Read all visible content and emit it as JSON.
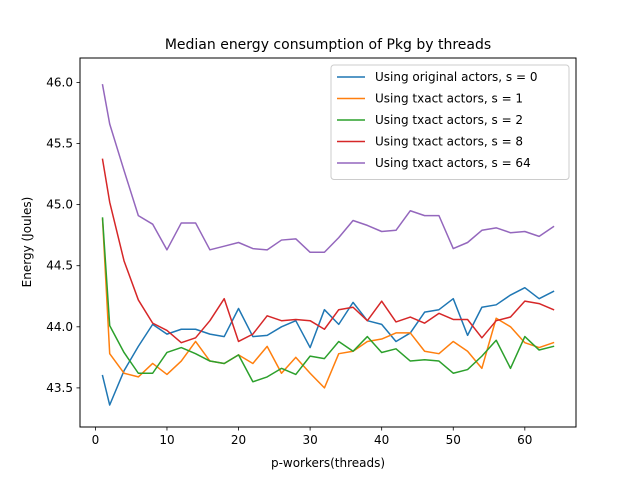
{
  "chart_data": {
    "type": "line",
    "title": "Median energy consumption of Pkg by threads",
    "xlabel": "p-workers(threads)",
    "ylabel": "Energy (Joules)",
    "xlim": [
      -2.15,
      67.15
    ],
    "ylim": [
      43.18,
      46.2
    ],
    "xticks": [
      0,
      10,
      20,
      30,
      40,
      50,
      60
    ],
    "yticks": [
      43.5,
      44.0,
      44.5,
      45.0,
      45.5,
      46.0
    ],
    "ytick_labels": [
      "43.5",
      "44.0",
      "44.5",
      "45.0",
      "45.5",
      "46.0"
    ],
    "grid": false,
    "legend_position": "top-right",
    "x": [
      1,
      2,
      4,
      6,
      8,
      10,
      12,
      14,
      16,
      18,
      20,
      22,
      24,
      26,
      28,
      30,
      32,
      34,
      36,
      38,
      40,
      42,
      44,
      46,
      48,
      50,
      52,
      54,
      56,
      58,
      60,
      62,
      64
    ],
    "series": [
      {
        "name": "Using original actors, s = 0",
        "color": "#1f77b4",
        "values": [
          43.6,
          43.36,
          43.64,
          43.84,
          44.02,
          43.94,
          43.98,
          43.98,
          43.94,
          43.92,
          44.15,
          43.92,
          43.93,
          44.0,
          44.05,
          43.83,
          44.14,
          44.02,
          44.2,
          44.05,
          44.02,
          43.88,
          43.95,
          44.12,
          44.14,
          44.23,
          43.93,
          44.16,
          44.18,
          44.26,
          44.32,
          44.23,
          44.29
        ]
      },
      {
        "name": "Using txact actors, s = 1",
        "color": "#ff7f0e",
        "values": [
          44.88,
          43.78,
          43.62,
          43.59,
          43.7,
          43.61,
          43.72,
          43.88,
          43.72,
          43.7,
          43.77,
          43.7,
          43.84,
          43.62,
          43.75,
          43.62,
          43.5,
          43.78,
          43.8,
          43.88,
          43.9,
          43.95,
          43.95,
          43.8,
          43.78,
          43.88,
          43.8,
          43.66,
          44.07,
          44.0,
          43.87,
          43.83,
          43.87
        ]
      },
      {
        "name": "Using txact actors, s = 2",
        "color": "#2ca02c",
        "values": [
          44.89,
          44.01,
          43.79,
          43.62,
          43.62,
          43.79,
          43.83,
          43.78,
          43.72,
          43.7,
          43.77,
          43.55,
          43.59,
          43.66,
          43.61,
          43.76,
          43.74,
          43.88,
          43.8,
          43.92,
          43.79,
          43.82,
          43.72,
          43.73,
          43.72,
          43.62,
          43.65,
          43.76,
          43.89,
          43.66,
          43.92,
          43.81,
          43.84
        ]
      },
      {
        "name": "Using txact actors, s = 8",
        "color": "#d62728",
        "values": [
          45.37,
          45.02,
          44.54,
          44.22,
          44.03,
          43.97,
          43.87,
          43.91,
          44.05,
          44.23,
          43.88,
          43.94,
          44.09,
          44.05,
          44.06,
          44.05,
          43.98,
          44.14,
          44.16,
          44.05,
          44.21,
          44.04,
          44.08,
          44.03,
          44.11,
          44.06,
          44.06,
          43.91,
          44.05,
          44.08,
          44.21,
          44.19,
          44.14
        ]
      },
      {
        "name": "Using txact actors, s = 64",
        "color": "#9467bd",
        "values": [
          45.98,
          45.66,
          45.28,
          44.91,
          44.84,
          44.63,
          44.85,
          44.85,
          44.63,
          44.66,
          44.69,
          44.64,
          44.63,
          44.71,
          44.72,
          44.61,
          44.61,
          44.73,
          44.87,
          44.83,
          44.78,
          44.79,
          44.95,
          44.91,
          44.91,
          44.64,
          44.69,
          44.79,
          44.81,
          44.77,
          44.78,
          44.74,
          44.82
        ]
      }
    ]
  }
}
